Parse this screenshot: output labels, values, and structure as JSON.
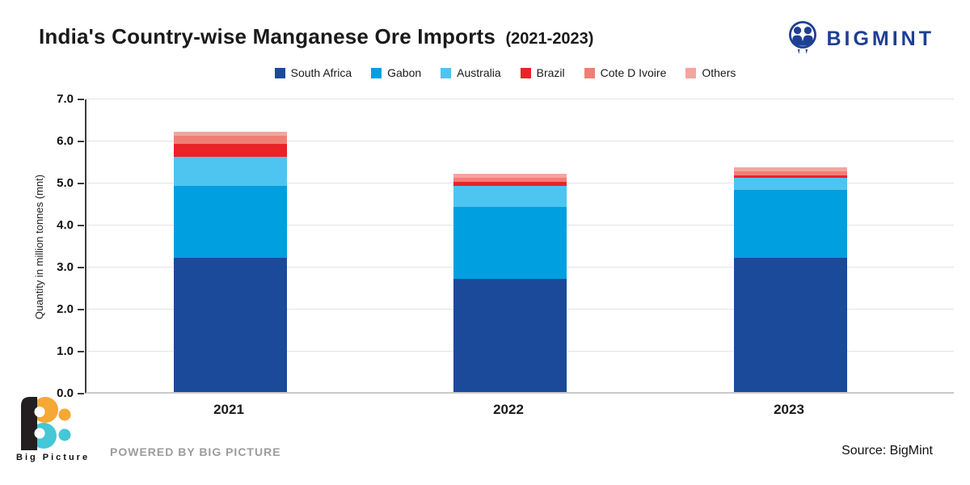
{
  "header": {
    "title": "India's Country-wise Manganese Ore Imports",
    "title_suffix": "(2021-2023)",
    "brand": "BIGMINT",
    "brand_color": "#1e3f94"
  },
  "chart_data": {
    "type": "bar",
    "stacked": true,
    "title": "India's Country-wise Manganese Ore Imports (2021-2023)",
    "categories": [
      "2021",
      "2022",
      "2023"
    ],
    "series": [
      {
        "name": "South Africa",
        "color": "#1b4a9b",
        "values": [
          3.2,
          2.7,
          3.2
        ]
      },
      {
        "name": "Gabon",
        "color": "#009fdf",
        "values": [
          1.7,
          1.7,
          1.6
        ]
      },
      {
        "name": "Australia",
        "color": "#4ec4f0",
        "values": [
          0.7,
          0.5,
          0.3
        ]
      },
      {
        "name": "Brazil",
        "color": "#e92328",
        "values": [
          0.3,
          0.1,
          0.05
        ]
      },
      {
        "name": "Cote D Ivoire",
        "color": "#ef7f75",
        "values": [
          0.2,
          0.1,
          0.1
        ]
      },
      {
        "name": "Others",
        "color": "#f3a5a0",
        "values": [
          0.1,
          0.1,
          0.1
        ]
      }
    ],
    "totals": [
      6.2,
      5.2,
      5.35
    ],
    "xlabel": "",
    "ylabel": "Quantity in million tonnes (mnt)",
    "ylim": [
      0,
      7
    ],
    "ytick_step": 1.0,
    "yticks": [
      "0.0",
      "1.0",
      "2.0",
      "3.0",
      "4.0",
      "5.0",
      "6.0",
      "7.0"
    ],
    "grid": true,
    "legend_position": "top"
  },
  "footer": {
    "brand_caption": "Big Picture",
    "powered_by": "POWERED BY BIG PICTURE",
    "source": "Source: BigMint"
  },
  "palette": {
    "bigpicture_orange": "#f5a833",
    "bigpicture_teal": "#45c7d6",
    "bigpicture_black": "#231f20"
  }
}
